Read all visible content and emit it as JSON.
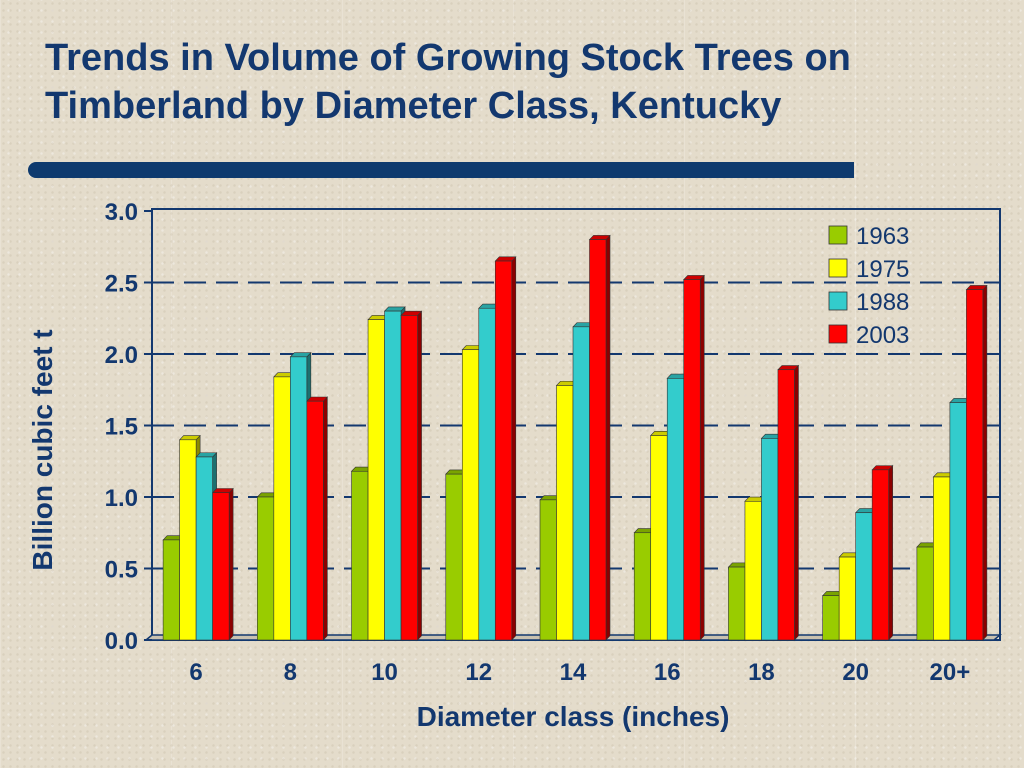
{
  "title_line1": "Trends in Volume of Growing Stock Trees on",
  "title_line2": "Timberland by Diameter Class, Kentucky",
  "chart_data": {
    "type": "bar",
    "title": "Trends in Volume of Growing Stock Trees on Timberland by Diameter Class, Kentucky",
    "xlabel": "Diameter class (inches)",
    "ylabel": "Billion cubic feet t",
    "categories": [
      "6",
      "8",
      "10",
      "12",
      "14",
      "16",
      "18",
      "20",
      "20+"
    ],
    "ylim": [
      0,
      3.0
    ],
    "yticks": [
      "0.0",
      "0.5",
      "1.0",
      "1.5",
      "2.0",
      "2.5",
      "3.0"
    ],
    "grid": "dashed horizontal",
    "legend_position": "top-right",
    "series": [
      {
        "name": "1963",
        "color": "#99cc00",
        "values": [
          0.7,
          1.0,
          1.18,
          1.16,
          0.98,
          0.75,
          0.51,
          0.31,
          0.65
        ]
      },
      {
        "name": "1975",
        "color": "#ffff00",
        "values": [
          1.4,
          1.84,
          2.24,
          2.03,
          1.78,
          1.43,
          0.97,
          0.58,
          1.14
        ]
      },
      {
        "name": "1988",
        "color": "#33cccc",
        "values": [
          1.28,
          1.98,
          2.3,
          2.32,
          2.19,
          1.83,
          1.41,
          0.89,
          1.66
        ]
      },
      {
        "name": "2003",
        "color": "#ff0000",
        "values": [
          1.03,
          1.67,
          2.27,
          2.65,
          2.8,
          2.52,
          1.89,
          1.19,
          2.45
        ]
      }
    ]
  }
}
